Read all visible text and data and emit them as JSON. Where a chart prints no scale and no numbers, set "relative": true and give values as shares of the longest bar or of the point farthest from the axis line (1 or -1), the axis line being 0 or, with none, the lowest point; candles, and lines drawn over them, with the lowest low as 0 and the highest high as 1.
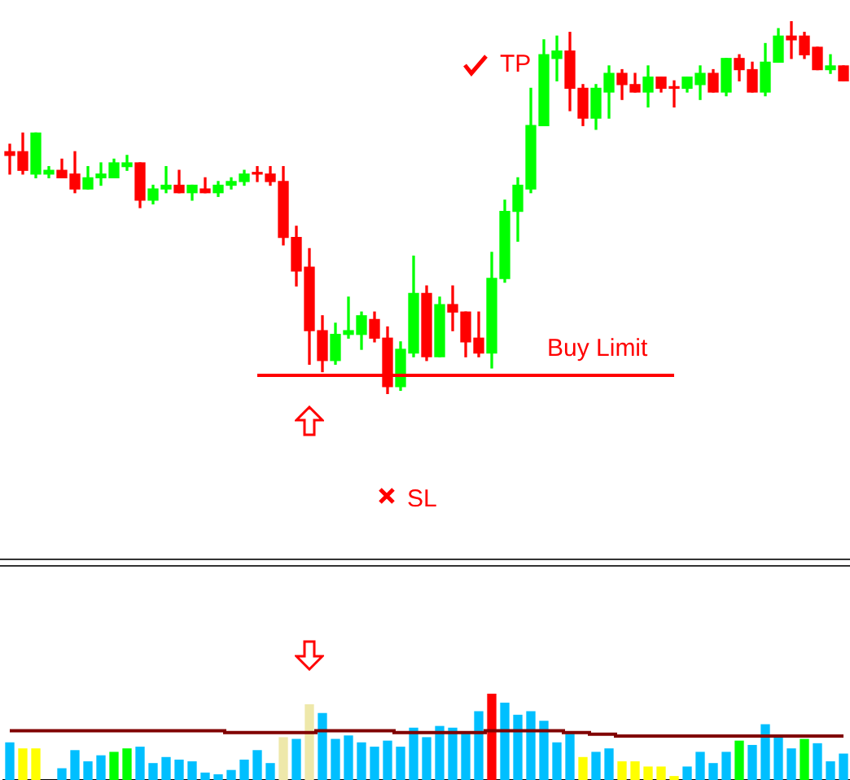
{
  "chart_data": [
    {
      "type": "candlestick",
      "relative": true,
      "tick_labels": false,
      "categories": [
        null,
        null,
        null,
        null,
        null,
        null,
        null,
        null,
        null,
        null,
        null,
        null,
        null,
        null,
        null,
        null,
        null,
        null,
        null,
        null,
        null,
        null,
        null,
        null,
        null,
        null,
        null,
        null,
        null,
        null,
        null,
        null,
        null,
        null,
        null,
        null,
        null,
        null,
        null,
        null,
        null,
        null,
        null,
        null,
        null,
        null,
        null,
        null,
        null,
        null,
        null,
        null,
        null,
        null,
        null,
        null,
        null,
        null,
        null,
        null,
        null,
        null,
        null,
        null,
        null
      ],
      "ohlc": [
        [
          0.65,
          0.67,
          0.59,
          0.64
        ],
        [
          0.65,
          0.7,
          0.59,
          0.6
        ],
        [
          0.59,
          0.7,
          0.58,
          0.7
        ],
        [
          0.59,
          0.61,
          0.58,
          0.6
        ],
        [
          0.6,
          0.63,
          0.58,
          0.58
        ],
        [
          0.59,
          0.65,
          0.54,
          0.55
        ],
        [
          0.55,
          0.61,
          0.55,
          0.58
        ],
        [
          0.58,
          0.62,
          0.56,
          0.59
        ],
        [
          0.58,
          0.63,
          0.58,
          0.62
        ],
        [
          0.61,
          0.64,
          0.6,
          0.62
        ],
        [
          0.62,
          0.62,
          0.5,
          0.52
        ],
        [
          0.52,
          0.56,
          0.51,
          0.55
        ],
        [
          0.55,
          0.61,
          0.54,
          0.56
        ],
        [
          0.56,
          0.6,
          0.54,
          0.54
        ],
        [
          0.54,
          0.56,
          0.52,
          0.56
        ],
        [
          0.55,
          0.58,
          0.54,
          0.54
        ],
        [
          0.54,
          0.57,
          0.53,
          0.56
        ],
        [
          0.56,
          0.58,
          0.55,
          0.57
        ],
        [
          0.57,
          0.6,
          0.56,
          0.59
        ],
        [
          0.59,
          0.61,
          0.57,
          0.59
        ],
        [
          0.59,
          0.61,
          0.56,
          0.57
        ],
        [
          0.57,
          0.61,
          0.4,
          0.42
        ],
        [
          0.42,
          0.45,
          0.29,
          0.33
        ],
        [
          0.34,
          0.39,
          0.08,
          0.17
        ],
        [
          0.17,
          0.21,
          0.06,
          0.09
        ],
        [
          0.09,
          0.19,
          0.08,
          0.16
        ],
        [
          0.16,
          0.26,
          0.15,
          0.17
        ],
        [
          0.16,
          0.22,
          0.12,
          0.21
        ],
        [
          0.2,
          0.22,
          0.14,
          0.15
        ],
        [
          0.15,
          0.18,
          0,
          0.02
        ],
        [
          0.02,
          0.14,
          0.01,
          0.12
        ],
        [
          0.11,
          0.37,
          0.1,
          0.27
        ],
        [
          0.27,
          0.29,
          0.09,
          0.1
        ],
        [
          0.1,
          0.26,
          0.1,
          0.24
        ],
        [
          0.24,
          0.29,
          0.17,
          0.22
        ],
        [
          0.22,
          0.22,
          0.1,
          0.14
        ],
        [
          0.15,
          0.22,
          0.1,
          0.11
        ],
        [
          0.11,
          0.38,
          0.07,
          0.31
        ],
        [
          0.31,
          0.52,
          0.3,
          0.49
        ],
        [
          0.49,
          0.58,
          0.41,
          0.56
        ],
        [
          0.55,
          0.82,
          0.54,
          0.72
        ],
        [
          0.72,
          0.95,
          0.72,
          0.91
        ],
        [
          0.9,
          0.96,
          0.84,
          0.92
        ],
        [
          0.92,
          0.97,
          0.76,
          0.82
        ],
        [
          0.82,
          0.83,
          0.72,
          0.74
        ],
        [
          0.74,
          0.83,
          0.71,
          0.82
        ],
        [
          0.81,
          0.88,
          0.74,
          0.86
        ],
        [
          0.86,
          0.87,
          0.79,
          0.83
        ],
        [
          0.83,
          0.86,
          0.81,
          0.81
        ],
        [
          0.81,
          0.88,
          0.77,
          0.85
        ],
        [
          0.85,
          0.85,
          0.81,
          0.82
        ],
        [
          0.82,
          0.84,
          0.77,
          0.82
        ],
        [
          0.82,
          0.85,
          0.81,
          0.85
        ],
        [
          0.83,
          0.88,
          0.79,
          0.86
        ],
        [
          0.86,
          0.87,
          0.81,
          0.81
        ],
        [
          0.81,
          0.9,
          0.8,
          0.9
        ],
        [
          0.9,
          0.91,
          0.84,
          0.87
        ],
        [
          0.87,
          0.89,
          0.81,
          0.81
        ],
        [
          0.81,
          0.94,
          0.8,
          0.89
        ],
        [
          0.89,
          0.98,
          0.89,
          0.96
        ],
        [
          0.96,
          1,
          0.9,
          0.95
        ],
        [
          0.96,
          0.97,
          0.9,
          0.91
        ],
        [
          0.93,
          0.93,
          0.87,
          0.87
        ],
        [
          0.87,
          0.91,
          0.86,
          0.88
        ],
        [
          0.88,
          0.88,
          0.84,
          0.84
        ]
      ],
      "colors": [
        "#ff0000",
        "#ff0000",
        "#00ff00",
        "#00ff00",
        "#ff0000",
        "#ff0000",
        "#00ff00",
        "#00ff00",
        "#00ff00",
        "#00ff00",
        "#ff0000",
        "#00ff00",
        "#00ff00",
        "#ff0000",
        "#00ff00",
        "#ff0000",
        "#00ff00",
        "#00ff00",
        "#00ff00",
        "#ff0000",
        "#ff0000",
        "#ff0000",
        "#ff0000",
        "#ff0000",
        "#ff0000",
        "#00ff00",
        "#00ff00",
        "#00ff00",
        "#ff0000",
        "#ff0000",
        "#00ff00",
        "#00ff00",
        "#ff0000",
        "#00ff00",
        "#ff0000",
        "#ff0000",
        "#ff0000",
        "#00ff00",
        "#00ff00",
        "#00ff00",
        "#00ff00",
        "#00ff00",
        "#00ff00",
        "#ff0000",
        "#ff0000",
        "#00ff00",
        "#00ff00",
        "#ff0000",
        "#ff0000",
        "#00ff00",
        "#ff0000",
        "#ff0000",
        "#00ff00",
        "#00ff00",
        "#ff0000",
        "#00ff00",
        "#ff0000",
        "#ff0000",
        "#00ff00",
        "#00ff00",
        "#ff0000",
        "#ff0000",
        "#ff0000",
        "#00ff00",
        "#ff0000"
      ],
      "ref_lines": [
        {
          "axis": "y",
          "value": 0.05,
          "label": "Buy Limit",
          "color": "#ff0000"
        }
      ],
      "annotations": [
        "TP",
        "SL"
      ]
    },
    {
      "type": "bar",
      "relative": true,
      "tick_labels": false,
      "categories": [
        null,
        null,
        null,
        null,
        null,
        null,
        null,
        null,
        null,
        null,
        null,
        null,
        null,
        null,
        null,
        null,
        null,
        null,
        null,
        null,
        null,
        null,
        null,
        null,
        null,
        null,
        null,
        null,
        null,
        null,
        null,
        null,
        null,
        null,
        null,
        null,
        null,
        null,
        null,
        null,
        null,
        null,
        null,
        null,
        null,
        null,
        null,
        null,
        null,
        null,
        null,
        null,
        null,
        null,
        null,
        null,
        null,
        null,
        null,
        null,
        null,
        null,
        null,
        null,
        null
      ],
      "series": [
        {
          "type": "bar",
          "values": [
            0.43,
            0.36,
            0.36,
            null,
            0.13,
            0.34,
            0.21,
            0.28,
            0.32,
            0.36,
            0.38,
            0.19,
            0.26,
            0.23,
            0.21,
            0.08,
            0.06,
            0.11,
            0.23,
            0.34,
            0.19,
            0.49,
            0.47,
            0.87,
            0.77,
            0.47,
            0.51,
            0.43,
            0.38,
            0.45,
            0.38,
            0.6,
            0.49,
            0.62,
            0.6,
            0.53,
            0.79,
            1,
            0.89,
            0.75,
            0.79,
            0.68,
            0.43,
            0.53,
            0.26,
            0.32,
            0.36,
            0.21,
            0.21,
            0.15,
            0.15,
            0.04,
            0.15,
            0.32,
            0.19,
            0.32,
            0.45,
            0.4,
            0.64,
            0.51,
            0.36,
            0.47,
            0.42,
            0.21,
            0.3
          ],
          "colors": [
            "#00bfff",
            "#ffff00",
            "#ffff00",
            "#00bfff",
            "#00bfff",
            "#00bfff",
            "#00bfff",
            "#00bfff",
            "#00ff00",
            "#00ff00",
            "#00bfff",
            "#00bfff",
            "#00bfff",
            "#00bfff",
            "#00bfff",
            "#00bfff",
            "#00bfff",
            "#00bfff",
            "#00bfff",
            "#00bfff",
            "#00bfff",
            "#eee8aa",
            "#00bfff",
            "#eee8aa",
            "#00bfff",
            "#00bfff",
            "#00bfff",
            "#00bfff",
            "#00bfff",
            "#00bfff",
            "#00bfff",
            "#00bfff",
            "#00bfff",
            "#00bfff",
            "#00bfff",
            "#00bfff",
            "#00bfff",
            "#ff0000",
            "#00bfff",
            "#00bfff",
            "#00bfff",
            "#00bfff",
            "#00bfff",
            "#00bfff",
            "#ffff00",
            "#00bfff",
            "#00bfff",
            "#ffff00",
            "#ffff00",
            "#ffff00",
            "#ffff00",
            "#ffff00",
            "#00bfff",
            "#00bfff",
            "#00bfff",
            "#00bfff",
            "#00ff00",
            "#00bfff",
            "#00bfff",
            "#00bfff",
            "#00bfff",
            "#00ff00",
            "#00bfff",
            "#00bfff",
            "#00bfff"
          ]
        },
        {
          "type": "step",
          "color": "#800000",
          "values": [
            0.57,
            0.57,
            0.57,
            0.57,
            0.57,
            0.57,
            0.57,
            0.57,
            0.57,
            0.57,
            0.57,
            0.57,
            0.57,
            0.57,
            0.57,
            0.57,
            0.57,
            0.55,
            0.55,
            0.55,
            0.55,
            0.55,
            0.55,
            0.55,
            0.57,
            0.57,
            0.57,
            0.57,
            0.57,
            0.57,
            0.55,
            0.55,
            0.55,
            0.55,
            0.55,
            0.55,
            0.55,
            0.57,
            0.57,
            0.57,
            0.57,
            0.57,
            0.57,
            0.55,
            0.55,
            0.53,
            0.53,
            0.51,
            0.51,
            0.51,
            0.51,
            0.51,
            0.51,
            0.51,
            0.51,
            0.51,
            0.51,
            0.51,
            0.51,
            0.51,
            0.51,
            0.51,
            0.51,
            0.51,
            0.51
          ]
        }
      ]
    }
  ]
}
